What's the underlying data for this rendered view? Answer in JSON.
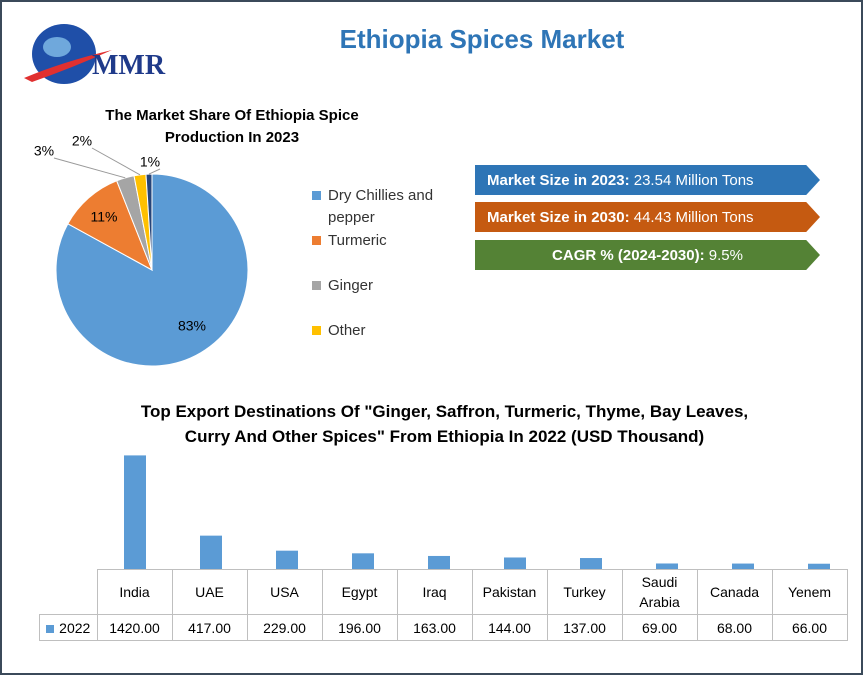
{
  "title": "Ethiopia Spices Market",
  "logo": "MMR",
  "stats": [
    {
      "label": "Market Size in 2023:",
      "value": "23.54 Million Tons",
      "color": "#2e75b6"
    },
    {
      "label": "Market Size in 2030:",
      "value": "44.43 Million Tons",
      "color": "#c55a11"
    },
    {
      "label": "CAGR % (2024-2030):",
      "value": "9.5%",
      "color": "#548235"
    }
  ],
  "chart_data": [
    {
      "type": "pie",
      "title": "The Market Share Of Ethiopia Spice Production  In 2023",
      "categories": [
        "Dry Chillies and pepper",
        "Turmeric",
        "Ginger",
        "Other",
        null
      ],
      "values": [
        83,
        11,
        3,
        2,
        1
      ],
      "value_labels": [
        "83%",
        "11%",
        "3%",
        "2%",
        "1%"
      ],
      "colors": [
        "#5b9bd5",
        "#ed7d31",
        "#a5a5a5",
        "#ffc000",
        "#264478"
      ]
    },
    {
      "type": "bar",
      "title": "Top Export Destinations Of \"Ginger, Saffron, Turmeric, Thyme, Bay Leaves, Curry And Other Spices\" From Ethiopia In 2022 (USD Thousand)",
      "categories": [
        "India",
        "UAE",
        "USA",
        "Egypt",
        "Iraq",
        "Pakistan",
        "Turkey",
        "Saudi Arabia",
        "Canada",
        "Yenem"
      ],
      "series": [
        {
          "name": "2022",
          "color": "#5b9bd5",
          "values": [
            1420,
            417,
            229,
            196,
            163,
            144,
            137,
            69,
            68,
            66
          ],
          "value_labels": [
            "1420.00",
            "417.00",
            "229.00",
            "196.00",
            "163.00",
            "144.00",
            "137.00",
            "69.00",
            "68.00",
            "66.00"
          ]
        }
      ],
      "ylim": [
        0,
        1600
      ]
    }
  ]
}
